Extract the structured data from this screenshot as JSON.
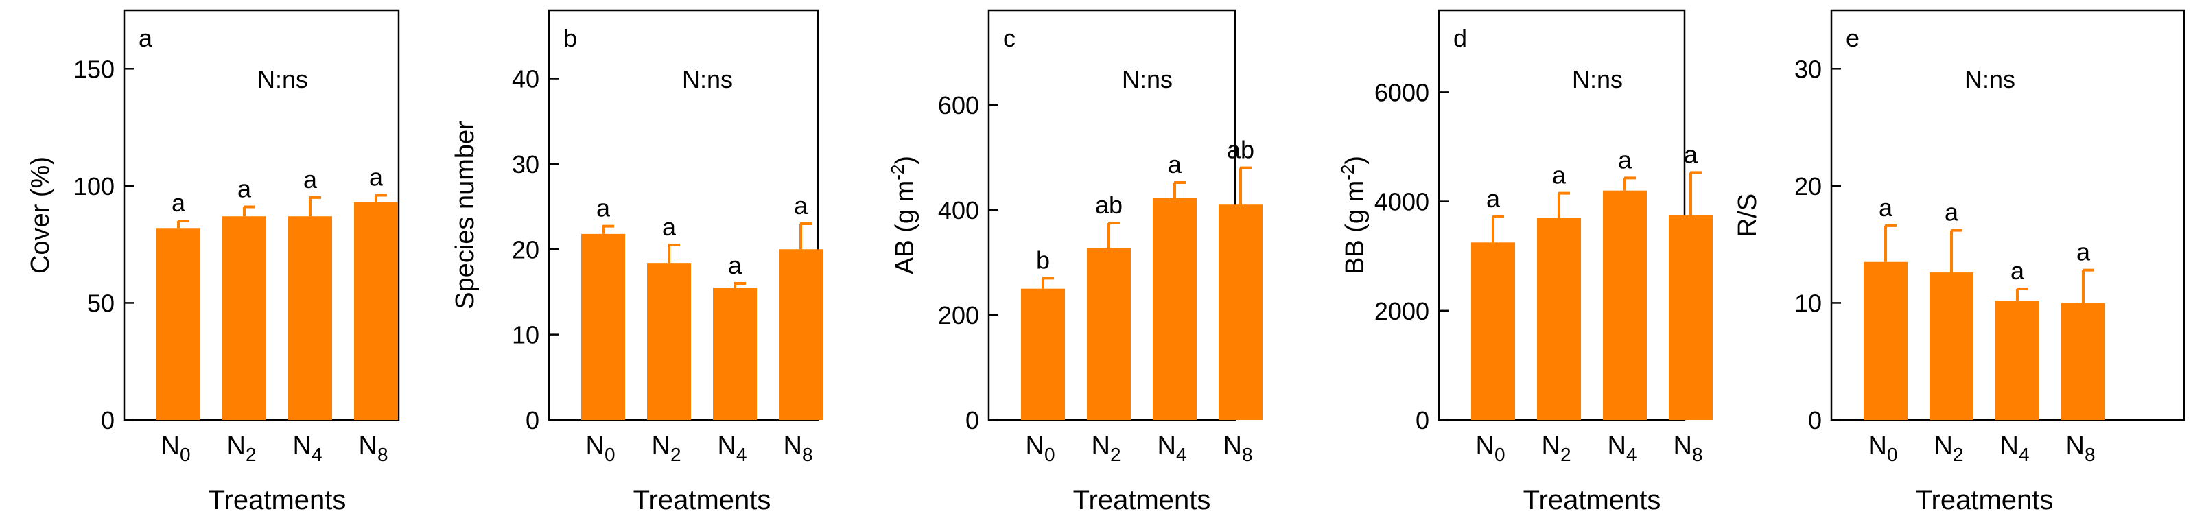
{
  "bar_color": "#ff8000",
  "axis_color": "#000000",
  "chart_data": [
    {
      "type": "bar",
      "panel": "a",
      "annotation": "N:ns",
      "ylabel": "Cover (%)",
      "xlabel": "Treatments",
      "ylim": [
        0,
        175
      ],
      "yticks": [
        "0",
        "50",
        "100",
        "150"
      ],
      "ytick_values": [
        0,
        50,
        100,
        150
      ],
      "categories": [
        {
          "base": "N",
          "sub": "0"
        },
        {
          "base": "N",
          "sub": "2"
        },
        {
          "base": "N",
          "sub": "4"
        },
        {
          "base": "N",
          "sub": "8"
        }
      ],
      "values": [
        82,
        87,
        87,
        93
      ],
      "errors": [
        3,
        4,
        8,
        3
      ],
      "letters": [
        "a",
        "a",
        "a",
        "a"
      ]
    },
    {
      "type": "bar",
      "panel": "b",
      "annotation": "N:ns",
      "ylabel": "Species number",
      "xlabel": "Treatments",
      "ylim": [
        0,
        48
      ],
      "yticks": [
        "0",
        "10",
        "20",
        "30",
        "40"
      ],
      "ytick_values": [
        0,
        10,
        20,
        30,
        40
      ],
      "categories": [
        {
          "base": "N",
          "sub": "0"
        },
        {
          "base": "N",
          "sub": "2"
        },
        {
          "base": "N",
          "sub": "4"
        },
        {
          "base": "N",
          "sub": "8"
        }
      ],
      "values": [
        21.8,
        18.4,
        15.5,
        20
      ],
      "errors": [
        0.9,
        2.1,
        0.5,
        3
      ],
      "letters": [
        "a",
        "a",
        "a",
        "a"
      ]
    },
    {
      "type": "bar",
      "panel": "c",
      "annotation": "N:ns",
      "ylabel": "AB (g m-2)",
      "ylabel_parts": {
        "pre": "AB (g m",
        "sup": "-2",
        "post": ")"
      },
      "xlabel": "Treatments",
      "ylim": [
        0,
        780
      ],
      "yticks": [
        "0",
        "200",
        "400",
        "600"
      ],
      "ytick_values": [
        0,
        200,
        400,
        600
      ],
      "categories": [
        {
          "base": "N",
          "sub": "0"
        },
        {
          "base": "N",
          "sub": "2"
        },
        {
          "base": "N",
          "sub": "4"
        },
        {
          "base": "N",
          "sub": "8"
        }
      ],
      "values": [
        250,
        327,
        422,
        410
      ],
      "errors": [
        20,
        48,
        30,
        70
      ],
      "letters": [
        "b",
        "ab",
        "a",
        "ab"
      ]
    },
    {
      "type": "bar",
      "panel": "d",
      "annotation": "N:ns",
      "ylabel": "BB (g m-2)",
      "ylabel_parts": {
        "pre": "BB (g m",
        "sup": "-2",
        "post": ")"
      },
      "xlabel": "Treatments",
      "ylim": [
        0,
        7500
      ],
      "yticks": [
        "0",
        "2000",
        "4000",
        "6000"
      ],
      "ytick_values": [
        0,
        2000,
        4000,
        6000
      ],
      "categories": [
        {
          "base": "N",
          "sub": "0"
        },
        {
          "base": "N",
          "sub": "2"
        },
        {
          "base": "N",
          "sub": "4"
        },
        {
          "base": "N",
          "sub": "8"
        }
      ],
      "values": [
        3250,
        3700,
        4200,
        3750
      ],
      "errors": [
        470,
        450,
        230,
        780
      ],
      "letters": [
        "a",
        "a",
        "a",
        "a"
      ]
    },
    {
      "type": "bar",
      "panel": "e",
      "annotation": "N:ns",
      "ylabel": "R/S",
      "xlabel": "Treatments",
      "ylim": [
        0,
        35
      ],
      "yticks": [
        "0",
        "10",
        "20",
        "30"
      ],
      "ytick_values": [
        0,
        10,
        20,
        30
      ],
      "categories": [
        {
          "base": "N",
          "sub": "0"
        },
        {
          "base": "N",
          "sub": "2"
        },
        {
          "base": "N",
          "sub": "4"
        },
        {
          "base": "N",
          "sub": "8"
        }
      ],
      "values": [
        13.5,
        12.6,
        10.2,
        10
      ],
      "errors": [
        3.1,
        3.6,
        1,
        2.8
      ],
      "letters": [
        "a",
        "a",
        "a",
        "a"
      ]
    }
  ]
}
